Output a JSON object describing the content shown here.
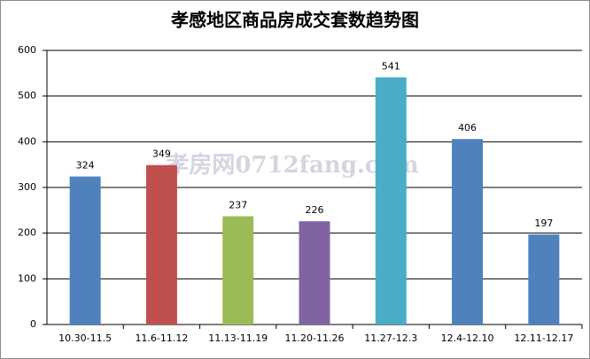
{
  "chart_data": {
    "type": "bar",
    "title": "孝感地区商品房成交套数趋势图",
    "categories": [
      "10.30-11.5",
      "11.6-11.12",
      "11.13-11.19",
      "11.20-11.26",
      "11.27-12.3",
      "12.4-12.10",
      "12.11-12.17"
    ],
    "values": [
      324,
      349,
      237,
      226,
      541,
      406,
      197
    ],
    "colors": [
      "#4f81bd",
      "#c0504d",
      "#9bbb59",
      "#8064a2",
      "#4bacc6",
      "#4f81bd",
      "#4f81bd"
    ],
    "ylim": [
      0,
      600
    ],
    "yticks": [
      0,
      100,
      200,
      300,
      400,
      500,
      600
    ],
    "grid": true,
    "watermark": "孝房网0712fang.com"
  }
}
